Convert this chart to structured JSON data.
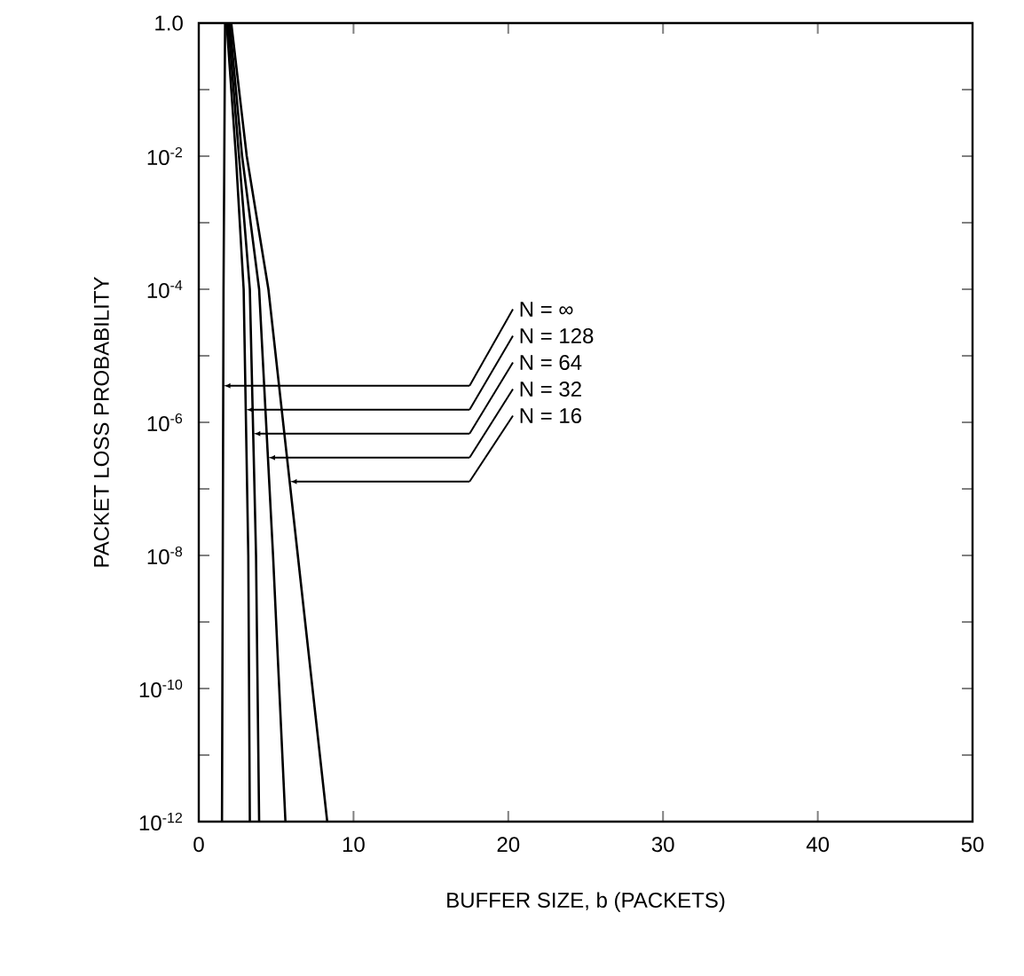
{
  "chart_data": {
    "type": "line",
    "xlabel": "BUFFER SIZE, b (PACKETS)",
    "ylabel": "PACKET LOSS PROBABILITY",
    "log": "y",
    "xlim": [
      0,
      50
    ],
    "xticks": [
      0,
      10,
      20,
      30,
      40,
      50
    ],
    "ylim": [
      1e-12,
      1
    ],
    "yticks": [
      {
        "value": 1,
        "label": "1.0"
      },
      {
        "value": 0.1,
        "label": null
      },
      {
        "value": 0.01,
        "label": "10$^{-2}$"
      },
      {
        "value": 0.001,
        "label": null
      },
      {
        "value": 0.0001,
        "label": "10$^{-4}$"
      },
      {
        "value": 1e-05,
        "label": null
      },
      {
        "value": 1e-06,
        "label": "10$^{-6}$"
      },
      {
        "value": 1e-07,
        "label": null
      },
      {
        "value": 1e-08,
        "label": "10$^{-8}$"
      },
      {
        "value": 1e-09,
        "label": null
      },
      {
        "value": 1e-10,
        "label": "10$^{-10}$"
      },
      {
        "value": 1e-11,
        "label": null
      },
      {
        "value": 1e-12,
        "label": "10$^{-12}$"
      }
    ],
    "grid": false,
    "marker": "none",
    "line_style": "solid",
    "series": [
      {
        "name": "N = ∞",
        "color": "#000000",
        "x": [
          1.7,
          1.65,
          1.6,
          1.55,
          1.5
        ],
        "values": [
          1,
          0.01,
          0.0001,
          1e-08,
          1e-12
        ]
      },
      {
        "name": "N = 128",
        "color": "#000000",
        "x": [
          1.8,
          2.4,
          2.9,
          3.2,
          3.3
        ],
        "values": [
          1,
          0.01,
          0.0001,
          1e-08,
          1e-12
        ]
      },
      {
        "name": "N = 64",
        "color": "#000000",
        "x": [
          1.9,
          2.6,
          3.3,
          3.7,
          3.9
        ],
        "values": [
          1,
          0.01,
          0.0001,
          1e-08,
          1e-12
        ]
      },
      {
        "name": "N = 32",
        "color": "#000000",
        "x": [
          2.0,
          2.8,
          3.9,
          4.8,
          5.6
        ],
        "values": [
          1,
          0.01,
          0.0001,
          1e-08,
          1e-12
        ]
      },
      {
        "name": "N = 16",
        "color": "#000000",
        "x": [
          2.1,
          3.1,
          4.5,
          6.4,
          8.3
        ],
        "values": [
          1,
          0.01,
          0.0001,
          1e-08,
          1e-12
        ]
      }
    ]
  }
}
